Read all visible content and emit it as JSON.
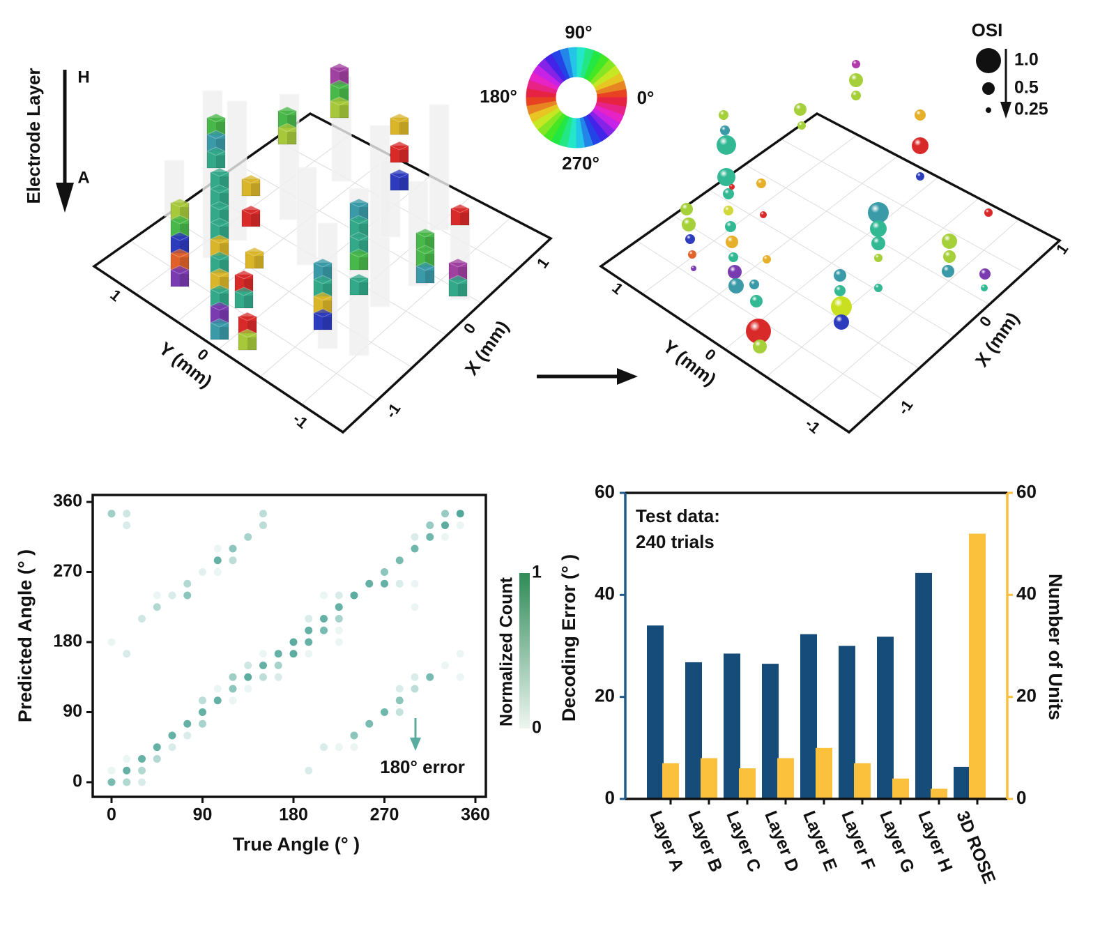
{
  "panel_3d_left": {
    "layer_axis_label": "Electrode Layer",
    "layer_top": "H",
    "layer_bottom": "A",
    "y_axis_label": "Y (mm)",
    "x_axis_label": "X (mm)",
    "ticks": [
      "1",
      "0",
      "-1"
    ]
  },
  "color_wheel": {
    "labels": {
      "top": "90°",
      "left": "180°",
      "right": "0°",
      "bottom": "270°"
    }
  },
  "panel_3d_right": {
    "y_axis_label": "Y (mm)",
    "x_axis_label": "X (mm)",
    "ticks": [
      "1",
      "0",
      "-1"
    ],
    "osi_legend": {
      "title": "OSI",
      "values": [
        "1.0",
        "0.5",
        "0.25"
      ]
    }
  },
  "chart_data": [
    {
      "type": "scatter",
      "xlabel": "True Angle (°  )",
      "ylabel": "Predicted Angle (°  )",
      "xlim": [
        0,
        360
      ],
      "ylim": [
        0,
        360
      ],
      "xticks": [
        "0",
        "90",
        "180",
        "270",
        "360"
      ],
      "yticks": [
        "0",
        "90",
        "180",
        "270",
        "360"
      ],
      "colorbar": {
        "label": "Normalized Count",
        "min": "0",
        "max": "1",
        "color": "#2e8b57"
      },
      "point_color": "#3f9e8f",
      "annotation": "180°  error",
      "annotation_color": "#5aaba0",
      "points_xy_count": [
        [
          0,
          0,
          0.7
        ],
        [
          0,
          15,
          0.1
        ],
        [
          0,
          180,
          0.1
        ],
        [
          0,
          345,
          0.5
        ],
        [
          15,
          0,
          0.4
        ],
        [
          15,
          15,
          0.8
        ],
        [
          15,
          30,
          0.1
        ],
        [
          15,
          165,
          0.2
        ],
        [
          15,
          330,
          0.2
        ],
        [
          15,
          345,
          0.25
        ],
        [
          30,
          0,
          0.2
        ],
        [
          30,
          15,
          0.4
        ],
        [
          30,
          30,
          0.8
        ],
        [
          30,
          210,
          0.25
        ],
        [
          45,
          30,
          0.4
        ],
        [
          45,
          45,
          0.8
        ],
        [
          45,
          225,
          0.4
        ],
        [
          45,
          240,
          0.1
        ],
        [
          60,
          45,
          0.2
        ],
        [
          60,
          60,
          0.8
        ],
        [
          60,
          240,
          0.2
        ],
        [
          75,
          60,
          0.2
        ],
        [
          75,
          75,
          0.8
        ],
        [
          75,
          240,
          0.6
        ],
        [
          75,
          255,
          0.4
        ],
        [
          90,
          75,
          0.45
        ],
        [
          90,
          90,
          0.8
        ],
        [
          90,
          105,
          0.35
        ],
        [
          90,
          270,
          0.15
        ],
        [
          105,
          105,
          0.8
        ],
        [
          105,
          120,
          0.1
        ],
        [
          105,
          270,
          0.1
        ],
        [
          105,
          285,
          0.8
        ],
        [
          105,
          300,
          0.1
        ],
        [
          120,
          105,
          0.1
        ],
        [
          120,
          120,
          0.6
        ],
        [
          120,
          135,
          0.5
        ],
        [
          120,
          285,
          0.35
        ],
        [
          120,
          300,
          0.6
        ],
        [
          135,
          120,
          0.1
        ],
        [
          135,
          135,
          0.85
        ],
        [
          135,
          150,
          0.25
        ],
        [
          135,
          315,
          0.45
        ],
        [
          150,
          135,
          0.35
        ],
        [
          150,
          150,
          0.8
        ],
        [
          150,
          165,
          0.1
        ],
        [
          150,
          330,
          0.35
        ],
        [
          150,
          345,
          0.35
        ],
        [
          165,
          135,
          0.2
        ],
        [
          165,
          150,
          0.45
        ],
        [
          165,
          165,
          0.8
        ],
        [
          180,
          165,
          0.85
        ],
        [
          180,
          180,
          0.85
        ],
        [
          195,
          15,
          0.2
        ],
        [
          195,
          165,
          0.1
        ],
        [
          195,
          180,
          0.8
        ],
        [
          195,
          195,
          0.8
        ],
        [
          195,
          210,
          0.2
        ],
        [
          210,
          45,
          0.2
        ],
        [
          210,
          195,
          0.7
        ],
        [
          210,
          210,
          0.8
        ],
        [
          210,
          240,
          0.1
        ],
        [
          225,
          45,
          0.1
        ],
        [
          225,
          180,
          0.1
        ],
        [
          225,
          195,
          0.1
        ],
        [
          225,
          210,
          0.45
        ],
        [
          225,
          225,
          0.8
        ],
        [
          225,
          240,
          0.2
        ],
        [
          240,
          45,
          0.1
        ],
        [
          240,
          60,
          0.6
        ],
        [
          240,
          240,
          0.85
        ],
        [
          255,
          75,
          0.7
        ],
        [
          255,
          255,
          0.8
        ],
        [
          270,
          90,
          0.75
        ],
        [
          270,
          255,
          0.8
        ],
        [
          270,
          270,
          0.6
        ],
        [
          285,
          90,
          0.3
        ],
        [
          285,
          105,
          0.6
        ],
        [
          285,
          120,
          0.2
        ],
        [
          285,
          255,
          0.2
        ],
        [
          285,
          285,
          0.7
        ],
        [
          300,
          120,
          0.35
        ],
        [
          300,
          135,
          0.2
        ],
        [
          300,
          225,
          0.1
        ],
        [
          300,
          255,
          0.1
        ],
        [
          300,
          300,
          0.75
        ],
        [
          300,
          315,
          0.2
        ],
        [
          315,
          135,
          0.7
        ],
        [
          315,
          315,
          0.75
        ],
        [
          315,
          330,
          0.55
        ],
        [
          330,
          150,
          0.1
        ],
        [
          330,
          315,
          0.1
        ],
        [
          330,
          330,
          0.85
        ],
        [
          330,
          345,
          0.55
        ],
        [
          345,
          135,
          0.1
        ],
        [
          345,
          165,
          0.1
        ],
        [
          345,
          330,
          0.1
        ],
        [
          345,
          345,
          0.9
        ]
      ]
    },
    {
      "type": "bar",
      "categories": [
        "Layer A",
        "Layer B",
        "Layer C",
        "Layer D",
        "Layer E",
        "Layer F",
        "Layer G",
        "Layer H",
        "3D ROSE"
      ],
      "ylabel": "Decoding Error (°  )",
      "y2label": "Number of Units",
      "ylim": [
        0,
        60
      ],
      "y2lim": [
        0,
        60
      ],
      "yticks": [
        "0",
        "20",
        "40",
        "60"
      ],
      "y2ticks": [
        "0",
        "20",
        "40",
        "60"
      ],
      "annotation": [
        "Test data:",
        "240 trials"
      ],
      "series": [
        {
          "axis": "left",
          "color": "#154c79",
          "values": [
            34,
            26.8,
            28.5,
            26.5,
            32.3,
            30,
            31.8,
            44.3,
            6.3
          ]
        },
        {
          "axis": "right",
          "color": "#fbc03c",
          "values": [
            7,
            8,
            6,
            8,
            10,
            7,
            4,
            2,
            52
          ]
        }
      ]
    }
  ]
}
